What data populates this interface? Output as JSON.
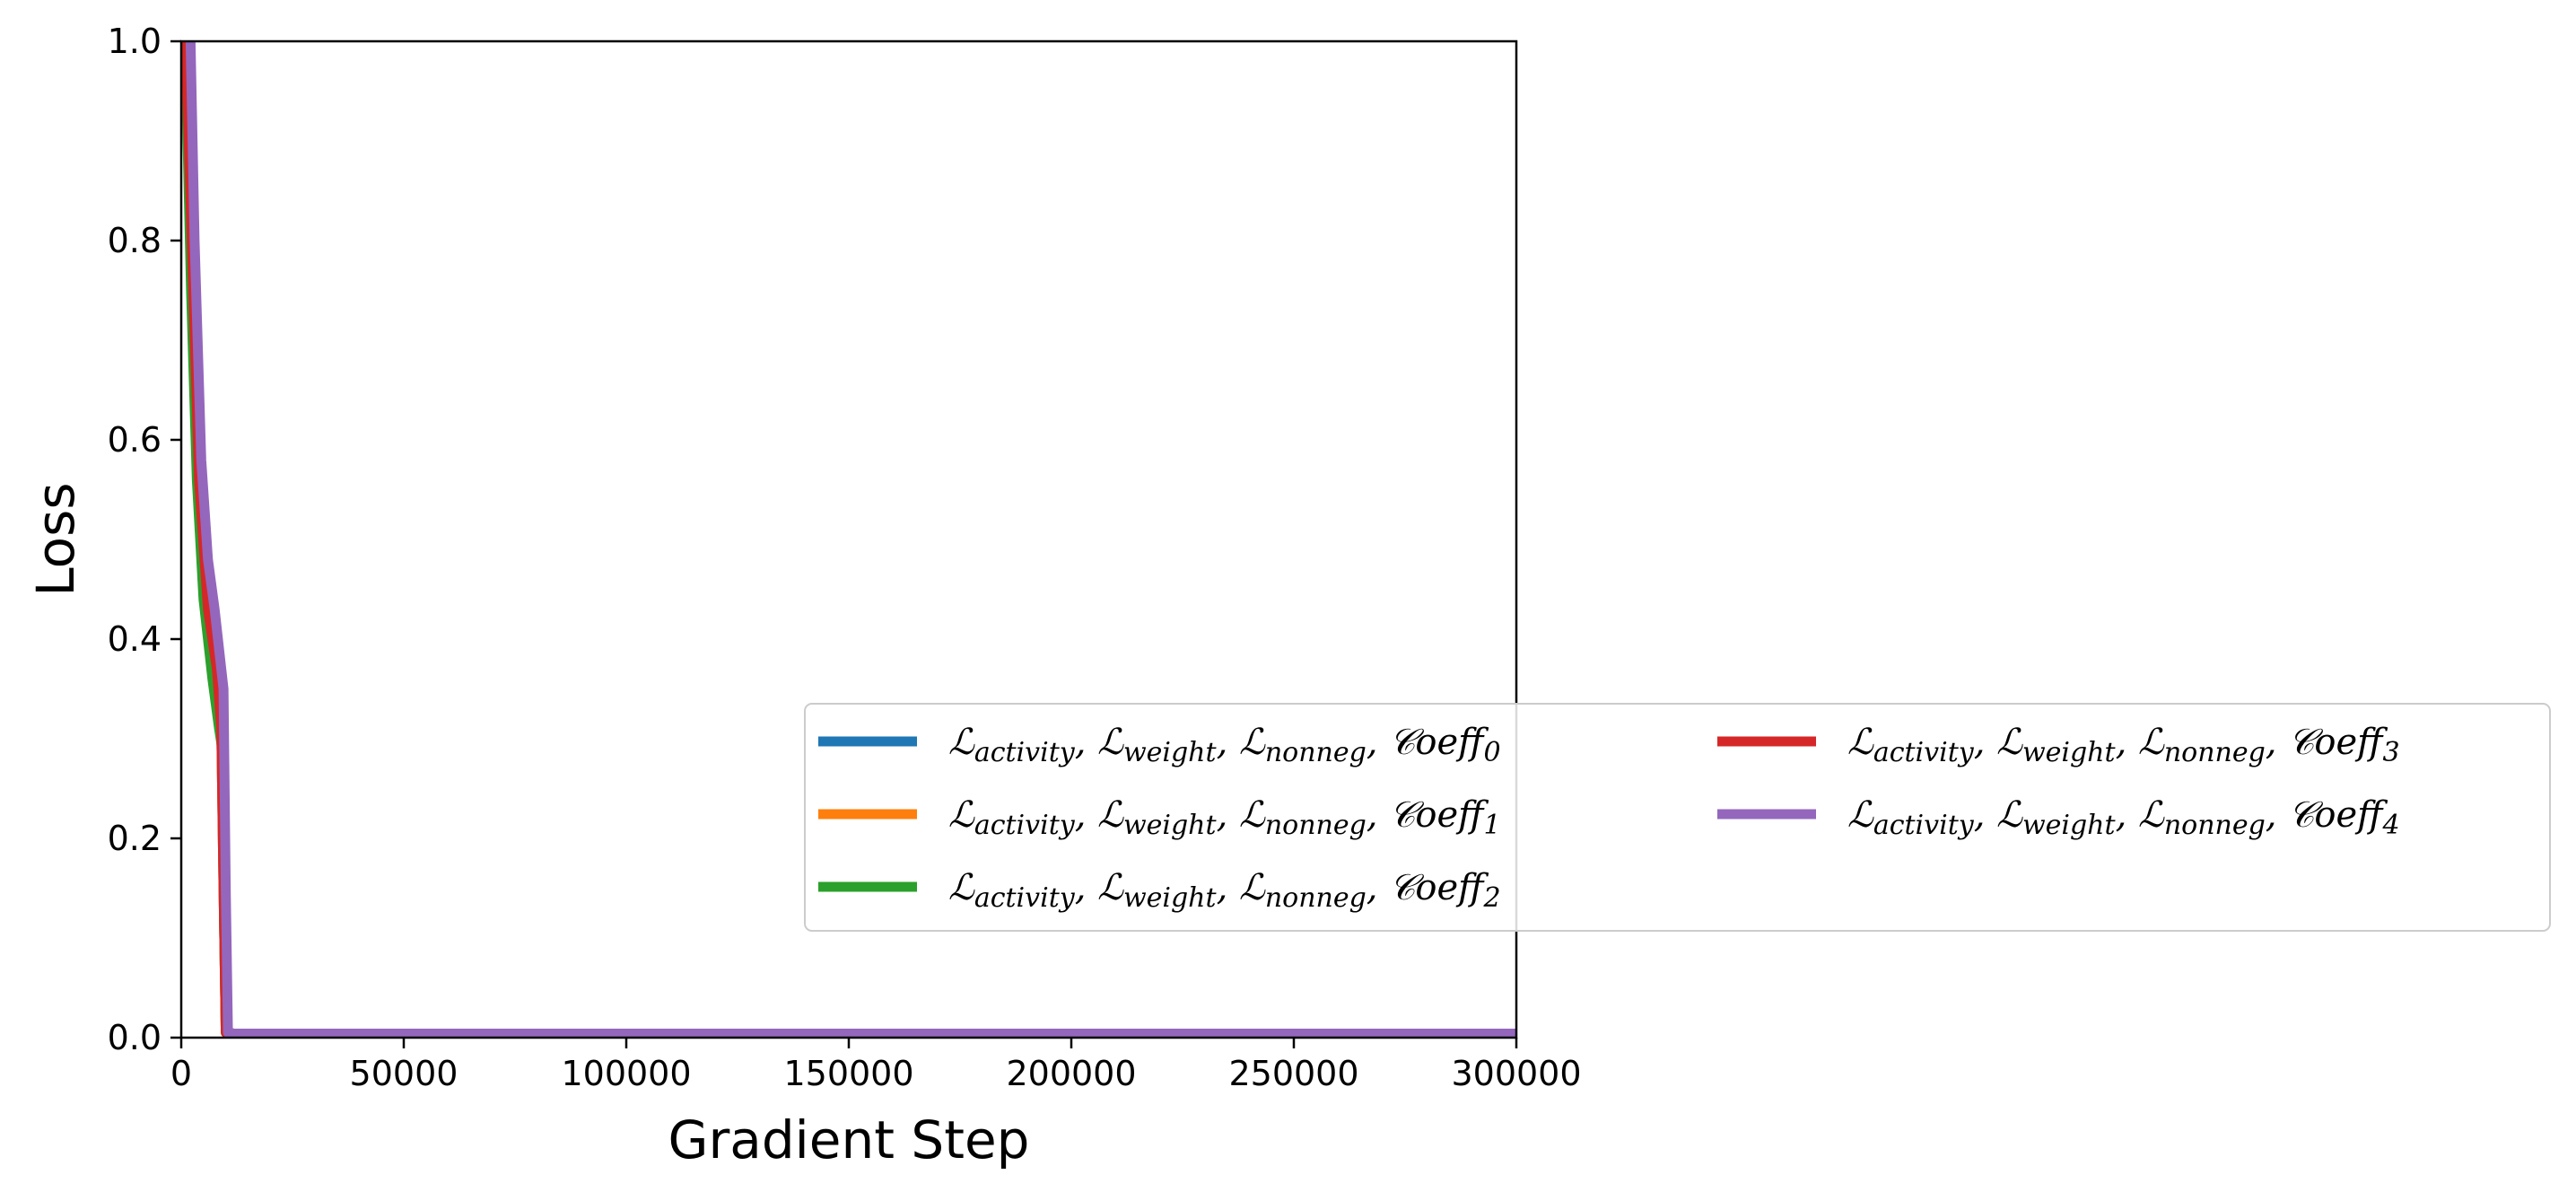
{
  "chart_data": {
    "type": "line",
    "xlabel": "Gradient Step",
    "ylabel": "Loss",
    "xlim": [
      0,
      300000
    ],
    "ylim": [
      0,
      1.0
    ],
    "xticks": [
      0,
      50000,
      100000,
      150000,
      200000,
      250000,
      300000
    ],
    "xtick_labels": [
      "0",
      "50000",
      "100000",
      "150000",
      "200000",
      "250000",
      "300000"
    ],
    "yticks": [
      0,
      0.2,
      0.4,
      0.6,
      0.8,
      1.0
    ],
    "ytick_labels": [
      "0.0",
      "0.2",
      "0.4",
      "0.6",
      "0.8",
      "1.0"
    ],
    "grid": false,
    "legend": {
      "placement": "lower-right, extending outside the axes",
      "columns": 2
    },
    "series": [
      {
        "name": "ℒactivity, ℒweight, ℒnonneg, 𝒞oeff0",
        "legend_parts": [
          "ℒ",
          "activity",
          ",  ℒ",
          "weight",
          ",  ℒ",
          "nonneg",
          ",  𝒞oeff",
          "0"
        ],
        "color": "#1f77b4",
        "x": [
          0,
          1000,
          2500,
          4000,
          6000,
          8000,
          9000,
          9500,
          10000,
          12000,
          20000,
          50000,
          100000,
          150000,
          200000,
          250000,
          300000
        ],
        "y": [
          1.25,
          1.0,
          0.78,
          0.56,
          0.43,
          0.37,
          0.31,
          0.15,
          0.005,
          0.004,
          0.004,
          0.004,
          0.004,
          0.004,
          0.004,
          0.004,
          0.004
        ]
      },
      {
        "name": "ℒactivity, ℒweight, ℒnonneg, 𝒞oeff1",
        "legend_parts": [
          "ℒ",
          "activity",
          ",  ℒ",
          "weight",
          ",  ℒ",
          "nonneg",
          ",  𝒞oeff",
          "1"
        ],
        "color": "#ff7f0e",
        "x": [
          0,
          1000,
          2500,
          4000,
          6000,
          8000,
          9000,
          9500,
          10000,
          12000,
          20000,
          50000,
          100000,
          150000,
          200000,
          250000,
          300000
        ],
        "y": [
          1.25,
          1.0,
          0.78,
          0.56,
          0.43,
          0.37,
          0.31,
          0.15,
          0.005,
          0.004,
          0.004,
          0.004,
          0.004,
          0.004,
          0.004,
          0.004,
          0.004
        ]
      },
      {
        "name": "ℒactivity, ℒweight, ℒnonneg, 𝒞oeff2",
        "legend_parts": [
          "ℒ",
          "activity",
          ",  ℒ",
          "weight",
          ",  ℒ",
          "nonneg",
          ",  𝒞oeff",
          "2"
        ],
        "color": "#2ca02c",
        "x": [
          0,
          1000,
          2200,
          3500,
          5000,
          7000,
          8500,
          9200,
          9600,
          10000,
          12000,
          20000,
          50000,
          100000,
          150000,
          200000,
          250000,
          300000
        ],
        "y": [
          1.25,
          0.98,
          0.75,
          0.56,
          0.44,
          0.36,
          0.31,
          0.29,
          0.12,
          0.005,
          0.004,
          0.004,
          0.004,
          0.004,
          0.004,
          0.004,
          0.004,
          0.004
        ]
      },
      {
        "name": "ℒactivity, ℒweight, ℒnonneg, 𝒞oeff3",
        "legend_parts": [
          "ℒ",
          "activity",
          ",  ℒ",
          "weight",
          ",  ℒ",
          "nonneg",
          ",  𝒞oeff",
          "3"
        ],
        "color": "#d62728",
        "x": [
          0,
          1000,
          2500,
          4000,
          6000,
          8000,
          9000,
          9500,
          10000,
          12000,
          20000,
          50000,
          100000,
          150000,
          200000,
          250000,
          300000
        ],
        "y": [
          1.25,
          1.0,
          0.78,
          0.56,
          0.43,
          0.37,
          0.31,
          0.15,
          0.005,
          0.004,
          0.004,
          0.004,
          0.004,
          0.004,
          0.004,
          0.004,
          0.004
        ]
      },
      {
        "name": "ℒactivity, ℒweight, ℒnonneg, 𝒞oeff4",
        "legend_parts": [
          "ℒ",
          "activity",
          ",  ℒ",
          "weight",
          ",  ℒ",
          "nonneg",
          ",  𝒞oeff",
          "4"
        ],
        "color": "#9467bd",
        "x": [
          0,
          2000,
          3000,
          4500,
          6000,
          7500,
          9000,
          9500,
          10000,
          10500,
          12000,
          20000,
          50000,
          100000,
          150000,
          200000,
          250000,
          300000
        ],
        "y": [
          1.3,
          1.02,
          0.8,
          0.58,
          0.48,
          0.43,
          0.37,
          0.35,
          0.15,
          0.005,
          0.004,
          0.004,
          0.004,
          0.004,
          0.004,
          0.004,
          0.004,
          0.004
        ]
      }
    ]
  }
}
